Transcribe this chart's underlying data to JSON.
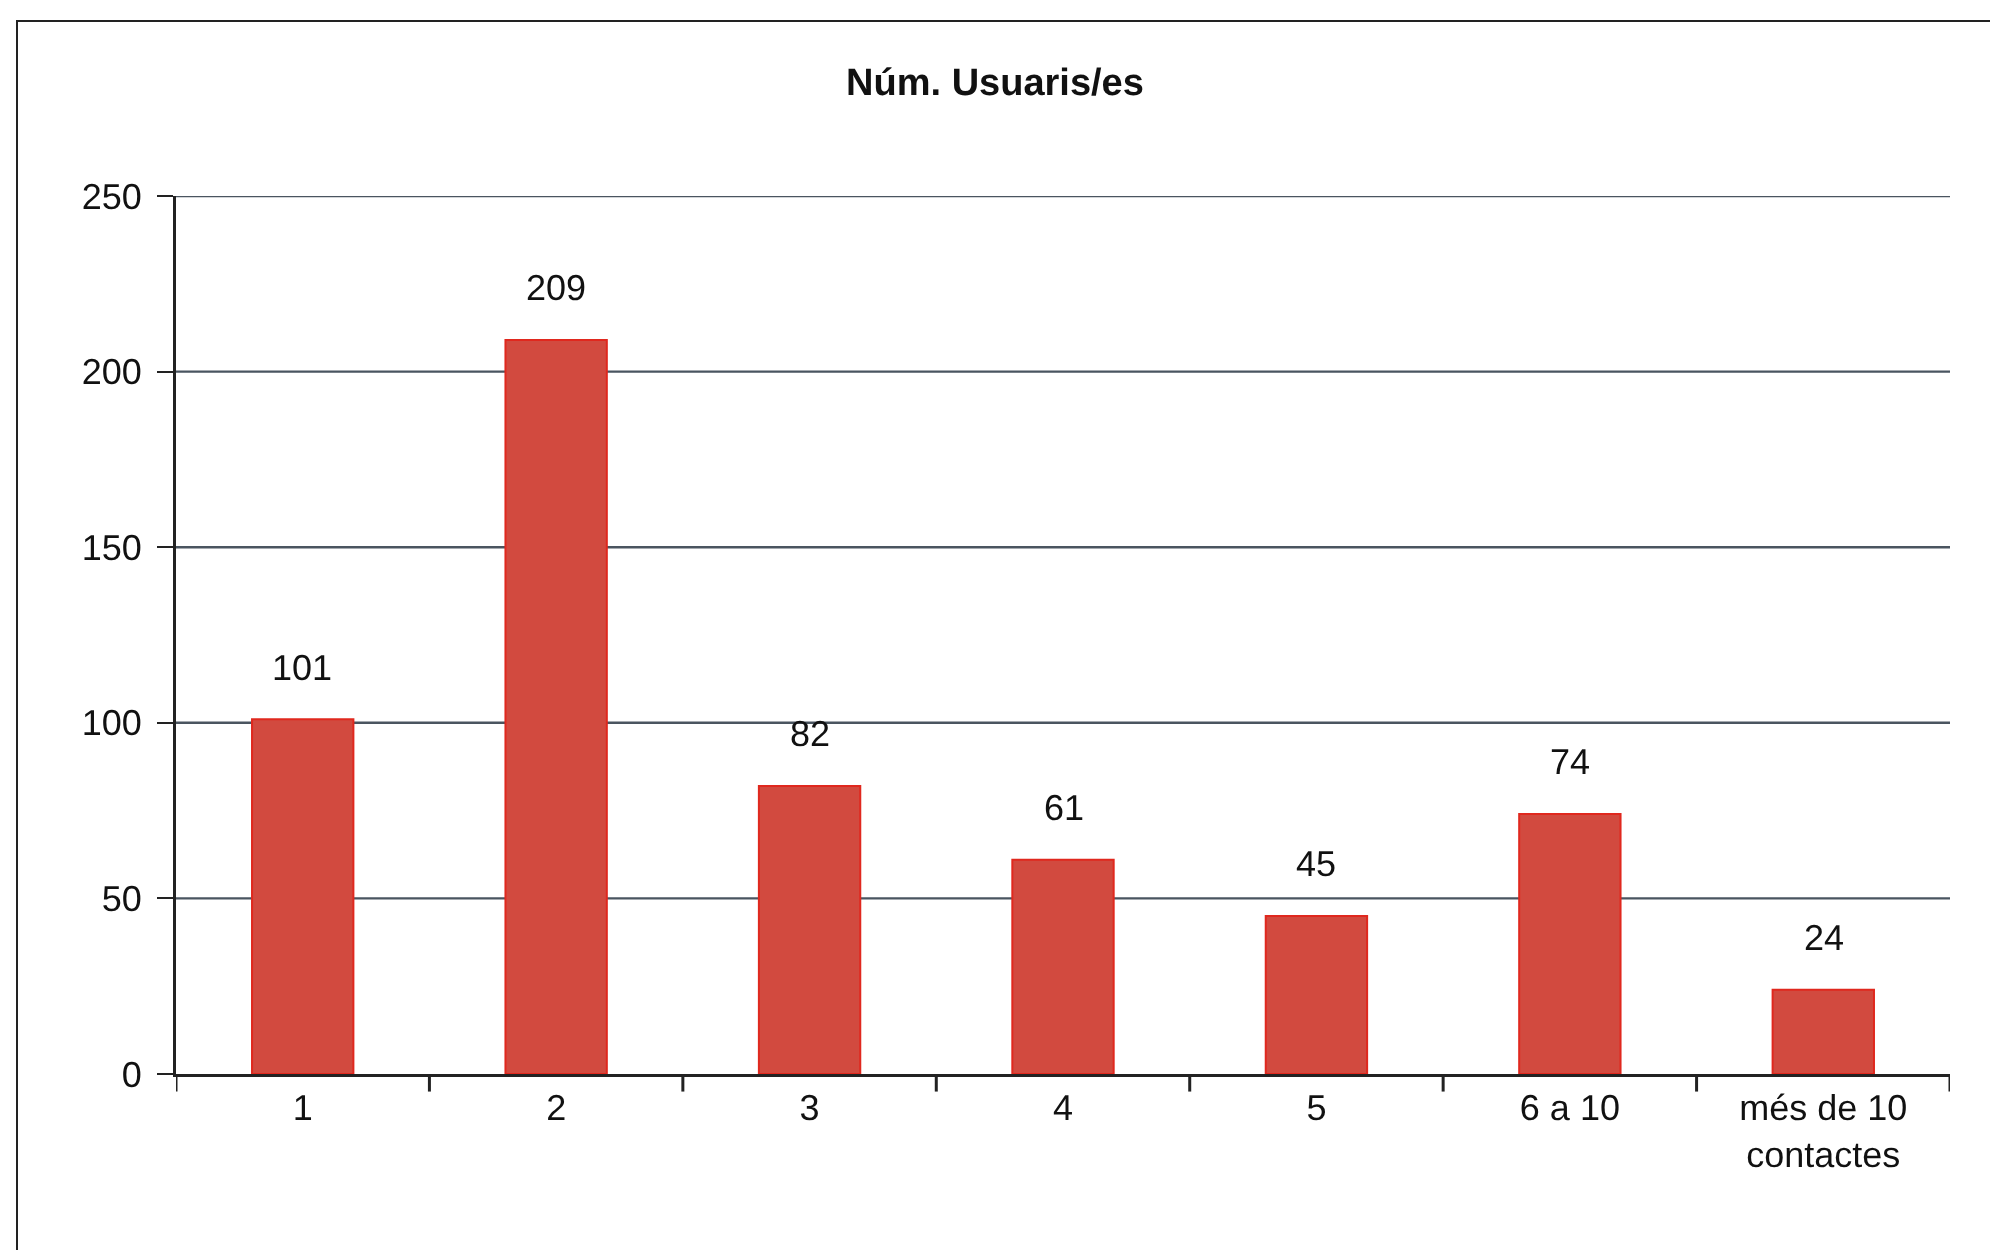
{
  "chart_data": {
    "type": "bar",
    "title": "Núm. Usuaris/es",
    "categories": [
      "1",
      "2",
      "3",
      "4",
      "5",
      "6 a 10",
      "més de 10 contactes"
    ],
    "values": [
      101,
      209,
      82,
      61,
      45,
      74,
      24
    ],
    "color": "#d24a3f",
    "ylim": [
      0,
      250
    ],
    "yticks": [
      0,
      50,
      100,
      150,
      200,
      250
    ],
    "grid": "y",
    "data_labels": true
  }
}
